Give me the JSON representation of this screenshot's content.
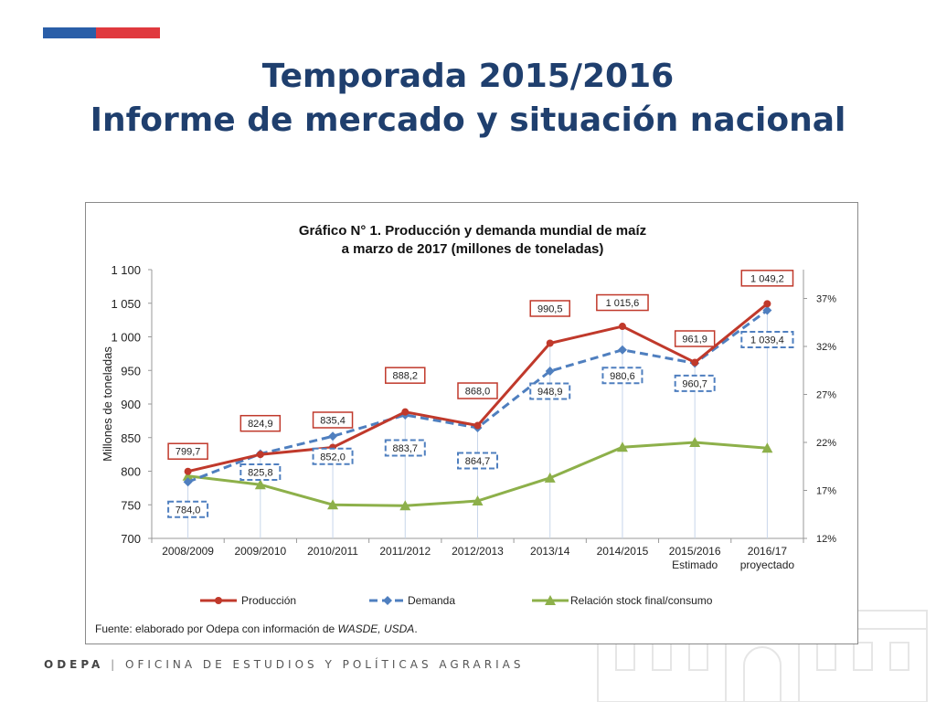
{
  "header": {
    "title_line1": "Temporada 2015/2016",
    "title_line2": "Informe de mercado y situación nacional"
  },
  "footer": {
    "org": "ODEPA",
    "separator": "|",
    "full_name": "OFICINA DE ESTUDIOS Y POLÍTICAS AGRARIAS"
  },
  "colors": {
    "title": "#1f3f6e",
    "produccion": "#c0392b",
    "demanda": "#4f7fbf",
    "relacion": "#8db04a"
  },
  "chart_data": {
    "type": "line",
    "title_line1": "Gráfico N° 1. Producción y demanda mundial de maíz",
    "title_line2": "a marzo de 2017 (millones de toneladas)",
    "ylabel": "Millones de toneladas",
    "ylim": [
      700,
      1100
    ],
    "y_ticks": [
      "700",
      "750",
      "800",
      "850",
      "900",
      "950",
      "1 000",
      "1 050",
      "1 100"
    ],
    "y2lim": [
      12,
      40
    ],
    "y2_ticks": [
      "12%",
      "17%",
      "22%",
      "27%",
      "32%",
      "37%"
    ],
    "categories": [
      [
        "2008/2009"
      ],
      [
        "2009/2010"
      ],
      [
        "2010/2011"
      ],
      [
        "2011/2012"
      ],
      [
        "2012/2013"
      ],
      [
        "2013/14"
      ],
      [
        "2014/2015"
      ],
      [
        "2015/2016",
        "Estimado"
      ],
      [
        "2016/17",
        "proyectado"
      ]
    ],
    "series": [
      {
        "name": "Producción",
        "values": [
          799.7,
          824.9,
          835.4,
          888.2,
          868.0,
          990.5,
          1015.6,
          961.9,
          1049.2
        ],
        "labels": [
          "799,7",
          "824,9",
          "835,4",
          "888,2",
          "868,0",
          "990,5",
          "1 015,6",
          "961,9",
          "1 049,2"
        ]
      },
      {
        "name": "Demanda",
        "values": [
          784.0,
          825.8,
          852.0,
          883.7,
          864.7,
          948.9,
          980.6,
          960.7,
          1039.4
        ],
        "labels": [
          "784,0",
          "825,8",
          "852,0",
          "883,7",
          "864,7",
          "948,9",
          "980,6",
          "960,7",
          "1 039,4"
        ]
      },
      {
        "name": "Relación stock final/consumo",
        "axis": "right",
        "values": [
          18.5,
          17.6,
          15.5,
          15.4,
          15.9,
          18.3,
          21.5,
          22.0,
          21.4
        ]
      }
    ],
    "legend": "bottom",
    "source_prefix": "Fuente: elaborado por Odepa con información de ",
    "source_italic": "WASDE, USDA",
    "source_suffix": "."
  }
}
